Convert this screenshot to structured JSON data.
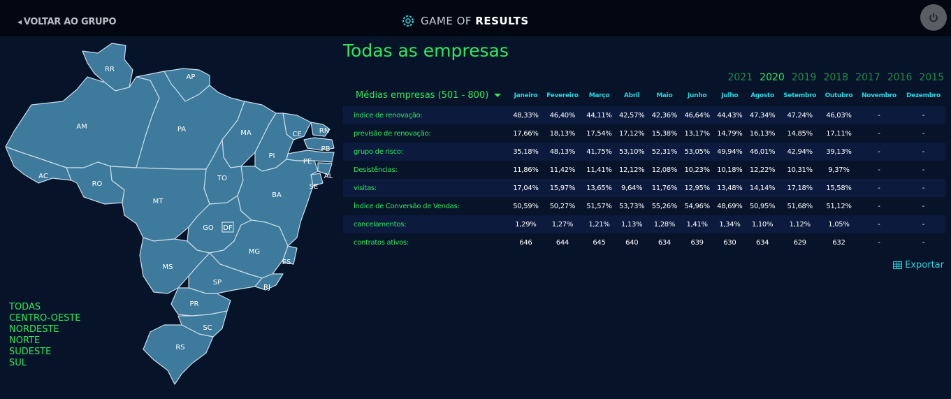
{
  "header": {
    "back_label": "VOLTAR AO GRUPO",
    "logo_prefix": "GAME OF ",
    "logo_bold": "RESULTS"
  },
  "map": {
    "states": [
      "RR",
      "AP",
      "AM",
      "PA",
      "CE",
      "RN",
      "PB",
      "PE",
      "AL",
      "SE",
      "MA",
      "PI",
      "AC",
      "RO",
      "TO",
      "BA",
      "MT",
      "GO",
      "DF",
      "MG",
      "ES",
      "MS",
      "SP",
      "RJ",
      "PR",
      "SC",
      "RS"
    ]
  },
  "regions": [
    "TODAS",
    "CENTRO-OESTE",
    "NORDESTE",
    "NORTE",
    "SUDESTE",
    "SUL"
  ],
  "title": "Todas as empresas",
  "years": [
    "2021",
    "2020",
    "2019",
    "2018",
    "2017",
    "2016",
    "2015"
  ],
  "selected_year": "2020",
  "selector_label": "Médias empresas (501 - 800)",
  "months": [
    "Janeiro",
    "Fevereiro",
    "Março",
    "Abril",
    "Maio",
    "Junho",
    "Julho",
    "Agosto",
    "Setembro",
    "Outubro",
    "Novembro",
    "Dezembro"
  ],
  "rows": [
    {
      "label": "índice de renovação:",
      "values": [
        "48,33%",
        "46,40%",
        "44,11%",
        "42,57%",
        "42,36%",
        "46,64%",
        "44,43%",
        "47,34%",
        "47,24%",
        "46,03%",
        "-",
        "-"
      ]
    },
    {
      "label": "previsão de renovação:",
      "values": [
        "17,66%",
        "18,13%",
        "17,54%",
        "17,12%",
        "15,38%",
        "13,17%",
        "14,79%",
        "16,13%",
        "14,85%",
        "17,11%",
        "-",
        "-"
      ]
    },
    {
      "label": "grupo de risco:",
      "values": [
        "35,18%",
        "48,13%",
        "41,75%",
        "53,10%",
        "52,31%",
        "53,05%",
        "49,94%",
        "46,01%",
        "42,94%",
        "39,13%",
        "-",
        "-"
      ]
    },
    {
      "label": "Desistências:",
      "values": [
        "11,86%",
        "11,42%",
        "11,41%",
        "12,12%",
        "12,08%",
        "10,23%",
        "10,18%",
        "12,22%",
        "10,31%",
        "9,37%",
        "-",
        "-"
      ]
    },
    {
      "label": "visitas:",
      "values": [
        "17,04%",
        "15,97%",
        "13,65%",
        "9,64%",
        "11,76%",
        "12,95%",
        "13,48%",
        "14,14%",
        "17,18%",
        "15,58%",
        "-",
        "-"
      ]
    },
    {
      "label": "Índice de Conversão de Vendas:",
      "values": [
        "50,59%",
        "50,27%",
        "51,57%",
        "53,73%",
        "55,26%",
        "54,96%",
        "48,69%",
        "50,95%",
        "51,68%",
        "51,12%",
        "-",
        "-"
      ]
    },
    {
      "label": "cancelamentos:",
      "values": [
        "1,29%",
        "1,27%",
        "1,21%",
        "1,13%",
        "1,28%",
        "1,41%",
        "1,34%",
        "1,10%",
        "1,12%",
        "1,05%",
        "-",
        "-"
      ]
    },
    {
      "label": "contratos ativos:",
      "values": [
        "646",
        "644",
        "645",
        "640",
        "634",
        "639",
        "630",
        "634",
        "629",
        "632",
        "-",
        "-"
      ]
    }
  ],
  "export_label": "Exportar",
  "colors": {
    "accent_green": "#2bea5f",
    "accent_cyan": "#22d8e3",
    "map_fill": "#3d7a9c",
    "background": "#061329"
  }
}
